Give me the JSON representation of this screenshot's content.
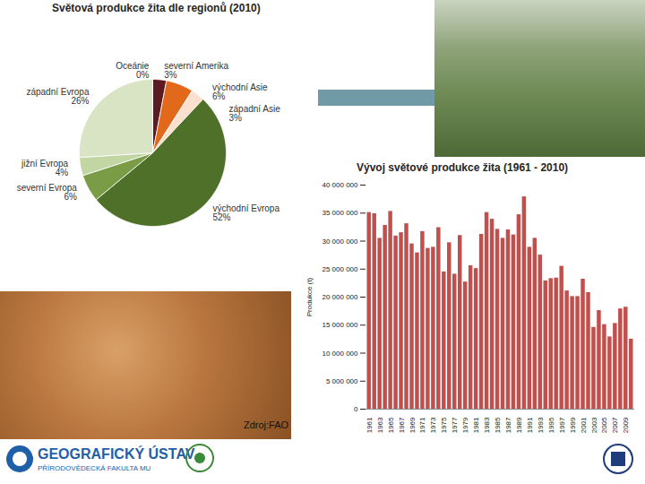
{
  "chart_data": [
    {
      "type": "pie",
      "title": "Světová produkce žita dle regionů (2010)",
      "categories": [
        "Oceánie",
        "severní Amerika",
        "východní Asie",
        "západní Asie",
        "východní Evropa",
        "severní Evropa",
        "jižní Evropa",
        "západní Evropa"
      ],
      "values": [
        0,
        3,
        6,
        3,
        52,
        6,
        4,
        26
      ],
      "value_labels": [
        "0%",
        "3%",
        "6%",
        "3%",
        "52%",
        "6%",
        "4%",
        "26%"
      ],
      "colors": [
        "#9e9e9e",
        "#5c1a22",
        "#e2681c",
        "#fbe0cf",
        "#4f7029",
        "#7a9c46",
        "#c2d6a4",
        "#d9e4c4"
      ],
      "data_labels": true
    },
    {
      "type": "bar",
      "title": "Vývoj světové produkce žita (1961 - 2010)",
      "y_label": "Produkce (t)",
      "categories": [
        "1961",
        null,
        "1963",
        null,
        "1965",
        null,
        "1967",
        null,
        "1969",
        null,
        "1971",
        null,
        "1973",
        null,
        "1975",
        null,
        "1977",
        null,
        "1979",
        null,
        "1981",
        null,
        "1983",
        null,
        "1985",
        null,
        "1987",
        null,
        "1989",
        null,
        "1991",
        null,
        "1993",
        null,
        "1995",
        null,
        "1997",
        null,
        "1999",
        null,
        "2001",
        null,
        "2003",
        null,
        "2005",
        null,
        "2007",
        null,
        "2009",
        null
      ],
      "values": [
        35100000,
        34900000,
        30500000,
        32800000,
        35300000,
        30900000,
        31500000,
        33100000,
        29500000,
        27900000,
        31700000,
        28700000,
        28900000,
        32400000,
        24500000,
        29700000,
        24100000,
        31000000,
        22700000,
        25600000,
        25100000,
        31200000,
        35100000,
        33900000,
        32100000,
        30500000,
        32000000,
        31100000,
        34700000,
        37900000,
        28900000,
        30500000,
        27500000,
        22900000,
        23300000,
        23400000,
        25500000,
        21100000,
        20100000,
        20100000,
        23200000,
        20800000,
        14600000,
        17600000,
        15100000,
        12900000,
        15300000,
        17900000,
        18200000,
        12500000
      ],
      "color": "#c0504d",
      "ylim": [
        0,
        40000000
      ],
      "yticks": [
        0,
        {
          "value": 5000000,
          "label": "5 000 000"
        },
        {
          "value": 10000000,
          "label": "10 000 000"
        },
        {
          "value": 15000000,
          "label": "15 000 000"
        },
        {
          "value": 20000000,
          "label": "20 000 000"
        },
        {
          "value": 25000000,
          "label": "25 000 000"
        },
        {
          "value": 30000000,
          "label": "30 000 000"
        },
        {
          "value": 35000000,
          "label": "35 000 000"
        },
        {
          "value": 40000000,
          "label": "40 000 000"
        }
      ],
      "grid": false
    }
  ],
  "source": "Zdroj:FAO",
  "footer": {
    "title": "GEOGRAFICKÝ ÚSTAV",
    "subtitle": "PŘÍRODOVĚDECKÁ FAKULTA MU"
  }
}
